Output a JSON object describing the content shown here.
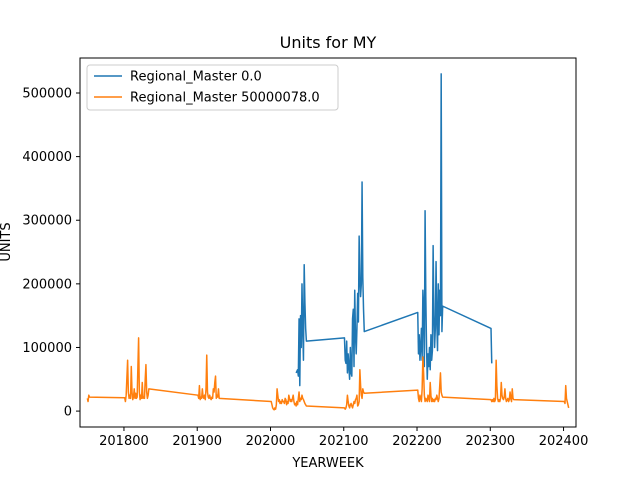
{
  "chart_data": {
    "type": "line",
    "title": "Units for MY",
    "xlabel": "YEARWEEK",
    "ylabel": "UNITS",
    "xlim": [
      201740,
      202417
    ],
    "ylim": [
      -25000,
      555000
    ],
    "x_ticks": [
      201800,
      201900,
      202000,
      202100,
      202200,
      202300,
      202400
    ],
    "x_tick_labels": [
      "201800",
      "201900",
      "202000",
      "202100",
      "202200",
      "202300",
      "202400"
    ],
    "y_ticks": [
      0,
      100000,
      200000,
      300000,
      400000,
      500000
    ],
    "y_tick_labels": [
      "0",
      "100000",
      "200000",
      "300000",
      "400000",
      "500000"
    ],
    "grid": false,
    "legend_position": "top-left",
    "series": [
      {
        "name": "Regional_Master 0.0",
        "color": "#1f77b4",
        "points": [
          [
            202035,
            60000
          ],
          [
            202037,
            65000
          ],
          [
            202038,
            55000
          ],
          [
            202039,
            145000
          ],
          [
            202040,
            40000
          ],
          [
            202041,
            150000
          ],
          [
            202042,
            100000
          ],
          [
            202043,
            200000
          ],
          [
            202044,
            130000
          ],
          [
            202045,
            80000
          ],
          [
            202046,
            230000
          ],
          [
            202047,
            170000
          ],
          [
            202048,
            130000
          ],
          [
            202049,
            110000
          ],
          [
            202101,
            115000
          ],
          [
            202102,
            80000
          ],
          [
            202103,
            75000
          ],
          [
            202104,
            110000
          ],
          [
            202105,
            60000
          ],
          [
            202106,
            90000
          ],
          [
            202107,
            70000
          ],
          [
            202108,
            50000
          ],
          [
            202109,
            100000
          ],
          [
            202110,
            60000
          ],
          [
            202111,
            55000
          ],
          [
            202112,
            145000
          ],
          [
            202113,
            160000
          ],
          [
            202114,
            70000
          ],
          [
            202115,
            190000
          ],
          [
            202116,
            120000
          ],
          [
            202117,
            90000
          ],
          [
            202118,
            130000
          ],
          [
            202119,
            185000
          ],
          [
            202120,
            140000
          ],
          [
            202121,
            275000
          ],
          [
            202122,
            210000
          ],
          [
            202123,
            180000
          ],
          [
            202124,
            200000
          ],
          [
            202125,
            360000
          ],
          [
            202126,
            210000
          ],
          [
            202127,
            160000
          ],
          [
            202128,
            125000
          ],
          [
            202201,
            155000
          ],
          [
            202202,
            90000
          ],
          [
            202203,
            120000
          ],
          [
            202204,
            80000
          ],
          [
            202205,
            100000
          ],
          [
            202206,
            130000
          ],
          [
            202207,
            80000
          ],
          [
            202208,
            190000
          ],
          [
            202209,
            160000
          ],
          [
            202210,
            70000
          ],
          [
            202211,
            315000
          ],
          [
            202212,
            180000
          ],
          [
            202213,
            100000
          ],
          [
            202214,
            50000
          ],
          [
            202215,
            90000
          ],
          [
            202216,
            70000
          ],
          [
            202217,
            100000
          ],
          [
            202218,
            65000
          ],
          [
            202219,
            120000
          ],
          [
            202220,
            80000
          ],
          [
            202221,
            95000
          ],
          [
            202222,
            260000
          ],
          [
            202223,
            150000
          ],
          [
            202224,
            100000
          ],
          [
            202225,
            130000
          ],
          [
            202226,
            235000
          ],
          [
            202227,
            140000
          ],
          [
            202228,
            95000
          ],
          [
            202229,
            200000
          ],
          [
            202230,
            120000
          ],
          [
            202231,
            190000
          ],
          [
            202232,
            150000
          ],
          [
            202233,
            530000
          ],
          [
            202234,
            125000
          ],
          [
            202235,
            165000
          ],
          [
            202301,
            130000
          ],
          [
            202302,
            75000
          ]
        ]
      },
      {
        "name": "Regional_Master 50000078.0",
        "color": "#ff7f0e",
        "points": [
          [
            201750,
            20000
          ],
          [
            201751,
            15000
          ],
          [
            201752,
            25000
          ],
          [
            201753,
            22000
          ],
          [
            201801,
            21000
          ],
          [
            201802,
            15000
          ],
          [
            201803,
            25000
          ],
          [
            201805,
            80000
          ],
          [
            201806,
            30000
          ],
          [
            201807,
            20000
          ],
          [
            201808,
            25000
          ],
          [
            201809,
            20000
          ],
          [
            201810,
            70000
          ],
          [
            201811,
            30000
          ],
          [
            201812,
            18000
          ],
          [
            201813,
            22000
          ],
          [
            201814,
            35000
          ],
          [
            201815,
            20000
          ],
          [
            201816,
            28000
          ],
          [
            201817,
            20000
          ],
          [
            201818,
            22000
          ],
          [
            201820,
            115000
          ],
          [
            201821,
            30000
          ],
          [
            201822,
            18000
          ],
          [
            201823,
            25000
          ],
          [
            201824,
            20000
          ],
          [
            201825,
            45000
          ],
          [
            201826,
            20000
          ],
          [
            201827,
            22000
          ],
          [
            201828,
            20000
          ],
          [
            201829,
            50000
          ],
          [
            201830,
            73000
          ],
          [
            201831,
            30000
          ],
          [
            201832,
            20000
          ],
          [
            201833,
            25000
          ],
          [
            201834,
            35000
          ],
          [
            201901,
            25000
          ],
          [
            201902,
            20000
          ],
          [
            201903,
            40000
          ],
          [
            201904,
            18000
          ],
          [
            201905,
            22000
          ],
          [
            201906,
            20000
          ],
          [
            201907,
            35000
          ],
          [
            201908,
            22000
          ],
          [
            201909,
            20000
          ],
          [
            201910,
            25000
          ],
          [
            201911,
            18000
          ],
          [
            201912,
            35000
          ],
          [
            201913,
            88000
          ],
          [
            201914,
            30000
          ],
          [
            201915,
            22000
          ],
          [
            201916,
            20000
          ],
          [
            201917,
            25000
          ],
          [
            201918,
            20000
          ],
          [
            201919,
            18000
          ],
          [
            201920,
            22000
          ],
          [
            201921,
            20000
          ],
          [
            201922,
            35000
          ],
          [
            201923,
            30000
          ],
          [
            201924,
            45000
          ],
          [
            201925,
            55000
          ],
          [
            201926,
            20000
          ],
          [
            201927,
            25000
          ],
          [
            201928,
            22000
          ],
          [
            201929,
            35000
          ],
          [
            201930,
            20000
          ],
          [
            202001,
            15000
          ],
          [
            202002,
            10000
          ],
          [
            202003,
            5000
          ],
          [
            202004,
            3000
          ],
          [
            202005,
            2000
          ],
          [
            202006,
            5000
          ],
          [
            202007,
            3000
          ],
          [
            202008,
            10000
          ],
          [
            202009,
            35000
          ],
          [
            202010,
            25000
          ],
          [
            202011,
            15000
          ],
          [
            202012,
            18000
          ],
          [
            202013,
            12000
          ],
          [
            202014,
            15000
          ],
          [
            202015,
            12000
          ],
          [
            202016,
            18000
          ],
          [
            202017,
            15000
          ],
          [
            202018,
            15000
          ],
          [
            202019,
            12000
          ],
          [
            202020,
            20000
          ],
          [
            202021,
            18000
          ],
          [
            202022,
            10000
          ],
          [
            202023,
            15000
          ],
          [
            202024,
            12000
          ],
          [
            202025,
            25000
          ],
          [
            202026,
            20000
          ],
          [
            202027,
            15000
          ],
          [
            202028,
            18000
          ],
          [
            202029,
            15000
          ],
          [
            202030,
            20000
          ],
          [
            202031,
            25000
          ],
          [
            202032,
            15000
          ],
          [
            202033,
            10000
          ],
          [
            202034,
            12000
          ],
          [
            202035,
            8000
          ],
          [
            202036,
            15000
          ],
          [
            202037,
            10000
          ],
          [
            202038,
            20000
          ],
          [
            202039,
            30000
          ],
          [
            202040,
            15000
          ],
          [
            202041,
            20000
          ],
          [
            202042,
            18000
          ],
          [
            202043,
            25000
          ],
          [
            202044,
            20000
          ],
          [
            202045,
            18000
          ],
          [
            202046,
            15000
          ],
          [
            202047,
            12000
          ],
          [
            202048,
            10000
          ],
          [
            202049,
            8000
          ],
          [
            202101,
            5000
          ],
          [
            202102,
            3000
          ],
          [
            202103,
            5000
          ],
          [
            202104,
            10000
          ],
          [
            202105,
            25000
          ],
          [
            202106,
            15000
          ],
          [
            202107,
            8000
          ],
          [
            202108,
            5000
          ],
          [
            202109,
            10000
          ],
          [
            202110,
            12000
          ],
          [
            202111,
            8000
          ],
          [
            202112,
            5000
          ],
          [
            202113,
            10000
          ],
          [
            202114,
            15000
          ],
          [
            202115,
            12000
          ],
          [
            202116,
            18000
          ],
          [
            202117,
            20000
          ],
          [
            202118,
            25000
          ],
          [
            202119,
            8000
          ],
          [
            202120,
            10000
          ],
          [
            202121,
            15000
          ],
          [
            202122,
            65000
          ],
          [
            202123,
            40000
          ],
          [
            202124,
            25000
          ],
          [
            202125,
            20000
          ],
          [
            202126,
            35000
          ],
          [
            202127,
            30000
          ],
          [
            202128,
            28000
          ],
          [
            202201,
            33000
          ],
          [
            202202,
            20000
          ],
          [
            202203,
            15000
          ],
          [
            202204,
            25000
          ],
          [
            202205,
            20000
          ],
          [
            202206,
            15000
          ],
          [
            202207,
            35000
          ],
          [
            202208,
            85000
          ],
          [
            202209,
            60000
          ],
          [
            202210,
            25000
          ],
          [
            202211,
            15000
          ],
          [
            202212,
            20000
          ],
          [
            202213,
            18000
          ],
          [
            202214,
            15000
          ],
          [
            202215,
            25000
          ],
          [
            202216,
            20000
          ],
          [
            202217,
            15000
          ],
          [
            202218,
            45000
          ],
          [
            202219,
            25000
          ],
          [
            202220,
            15000
          ],
          [
            202221,
            20000
          ],
          [
            202222,
            15000
          ],
          [
            202223,
            18000
          ],
          [
            202224,
            15000
          ],
          [
            202225,
            20000
          ],
          [
            202226,
            18000
          ],
          [
            202227,
            25000
          ],
          [
            202228,
            20000
          ],
          [
            202229,
            15000
          ],
          [
            202230,
            20000
          ],
          [
            202231,
            40000
          ],
          [
            202232,
            60000
          ],
          [
            202233,
            30000
          ],
          [
            202234,
            25000
          ],
          [
            202235,
            22000
          ],
          [
            202301,
            18000
          ],
          [
            202302,
            15000
          ],
          [
            202303,
            18000
          ],
          [
            202304,
            15000
          ],
          [
            202305,
            20000
          ],
          [
            202306,
            15000
          ],
          [
            202307,
            18000
          ],
          [
            202308,
            80000
          ],
          [
            202309,
            40000
          ],
          [
            202310,
            20000
          ],
          [
            202311,
            15000
          ],
          [
            202312,
            18000
          ],
          [
            202313,
            15000
          ],
          [
            202314,
            20000
          ],
          [
            202315,
            45000
          ],
          [
            202316,
            25000
          ],
          [
            202317,
            20000
          ],
          [
            202318,
            18000
          ],
          [
            202319,
            22000
          ],
          [
            202320,
            35000
          ],
          [
            202321,
            20000
          ],
          [
            202322,
            15000
          ],
          [
            202323,
            18000
          ],
          [
            202324,
            20000
          ],
          [
            202325,
            15000
          ],
          [
            202326,
            18000
          ],
          [
            202327,
            30000
          ],
          [
            202328,
            20000
          ],
          [
            202329,
            15000
          ],
          [
            202330,
            35000
          ],
          [
            202331,
            20000
          ],
          [
            202332,
            18000
          ],
          [
            202401,
            15000
          ],
          [
            202402,
            12000
          ],
          [
            202403,
            40000
          ],
          [
            202404,
            20000
          ],
          [
            202405,
            15000
          ],
          [
            202406,
            10000
          ],
          [
            202407,
            5000
          ]
        ]
      }
    ]
  }
}
